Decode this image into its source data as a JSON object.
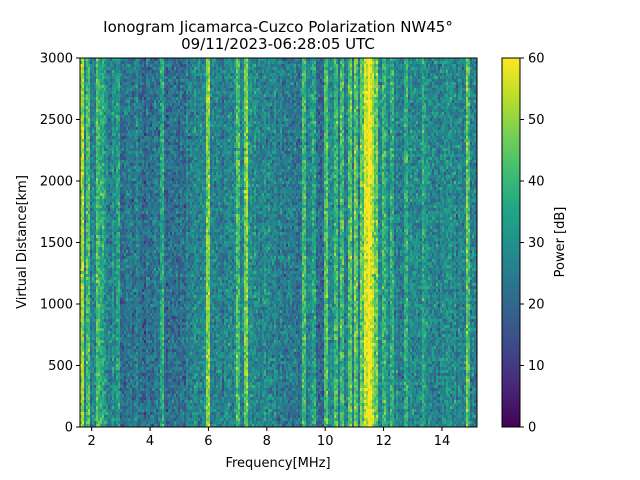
{
  "chart_data": {
    "type": "heatmap",
    "title": "Ionogram Jicamarca-Cuzco Polarization NW45°",
    "subtitle": "09/11/2023-06:28:05 UTC",
    "xlabel": "Frequency[MHz]",
    "ylabel": "Virtual Distance[km]",
    "xlim": [
      1.6,
      15.2
    ],
    "ylim": [
      0,
      3000
    ],
    "xticks": [
      2,
      4,
      6,
      8,
      10,
      12,
      14
    ],
    "yticks": [
      0,
      500,
      1000,
      1500,
      2000,
      2500,
      3000
    ],
    "colorbar": {
      "label": "Power [dB]",
      "range": [
        0,
        60
      ],
      "ticks": [
        0,
        10,
        20,
        30,
        40,
        50,
        60
      ],
      "colormap": "viridis"
    },
    "baseline_power_db": 27,
    "bands": [
      {
        "freq": 1.7,
        "power_db": 52
      },
      {
        "freq": 1.85,
        "power_db": 42
      },
      {
        "freq": 2.2,
        "power_db": 40
      },
      {
        "freq": 2.35,
        "power_db": 38
      },
      {
        "freq": 2.9,
        "power_db": 37
      },
      {
        "freq": 4.4,
        "power_db": 36
      },
      {
        "freq": 6.0,
        "power_db": 50
      },
      {
        "freq": 7.0,
        "power_db": 44
      },
      {
        "freq": 7.3,
        "power_db": 48
      },
      {
        "freq": 9.3,
        "power_db": 42
      },
      {
        "freq": 9.6,
        "power_db": 40
      },
      {
        "freq": 10.05,
        "power_db": 43
      },
      {
        "freq": 10.35,
        "power_db": 41
      },
      {
        "freq": 10.6,
        "power_db": 42
      },
      {
        "freq": 10.85,
        "power_db": 43
      },
      {
        "freq": 11.05,
        "power_db": 44
      },
      {
        "freq": 11.25,
        "power_db": 48
      },
      {
        "freq": 11.4,
        "power_db": 58
      },
      {
        "freq": 11.5,
        "power_db": 60
      },
      {
        "freq": 11.6,
        "power_db": 55
      },
      {
        "freq": 11.75,
        "power_db": 46
      },
      {
        "freq": 12.0,
        "power_db": 40
      },
      {
        "freq": 12.3,
        "power_db": 39
      },
      {
        "freq": 12.8,
        "power_db": 38
      },
      {
        "freq": 13.4,
        "power_db": 37
      },
      {
        "freq": 14.9,
        "power_db": 44
      }
    ],
    "low_power_bands": [
      {
        "freq_range": [
          3.0,
          5.2
        ],
        "power_db": 22
      },
      {
        "freq_range": [
          8.5,
          9.2
        ],
        "power_db": 23
      },
      {
        "freq_range": [
          9.6,
          10.0
        ],
        "power_db": 20
      }
    ]
  }
}
